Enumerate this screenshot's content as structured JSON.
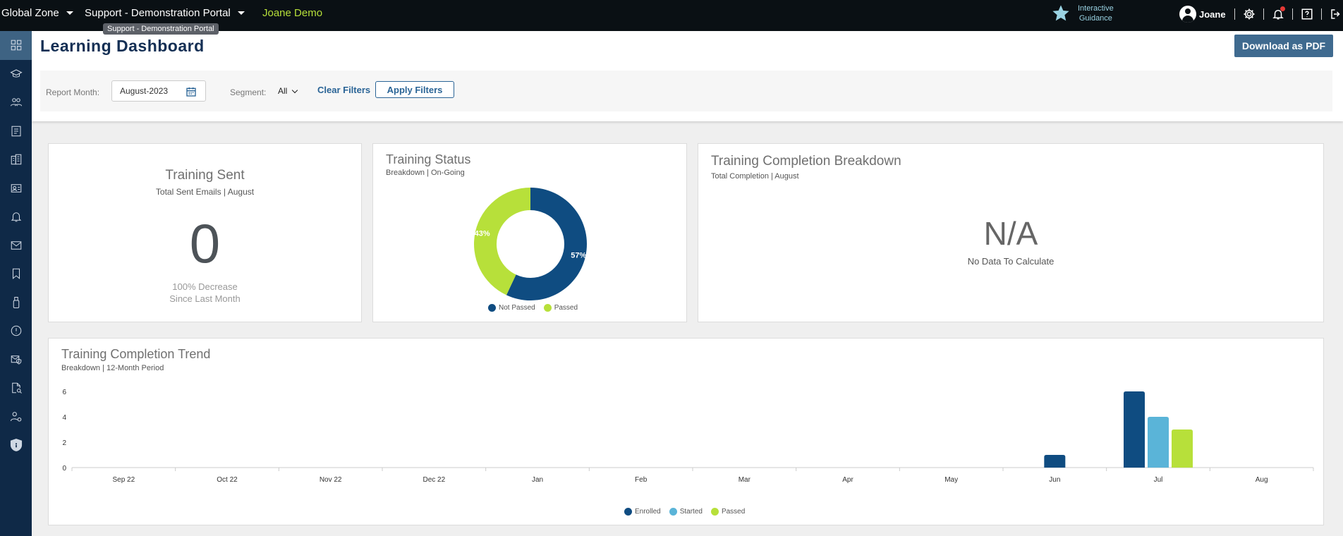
{
  "topbar": {
    "zone": "Global Zone",
    "portal": "Support - Demonstration Portal",
    "demo": "Joane Demo",
    "tooltip": "Support - Demonstration Portal",
    "guidance_line1": "Interactive",
    "guidance_line2": "Guidance",
    "user_name": "Joane",
    "icons": [
      "settings-icon",
      "bell-icon",
      "help-icon",
      "logout-icon"
    ]
  },
  "sidebar": {
    "items": [
      "dashboard-icon",
      "training-icon",
      "users-icon",
      "reports-icon",
      "company-icon",
      "profile-card-icon",
      "alert-bell-icon",
      "mail-icon",
      "bookmark-icon",
      "usb-icon",
      "warning-icon",
      "mail-shield-icon",
      "document-search-icon",
      "user-settings-icon",
      "shield-icon"
    ],
    "active_index": 0
  },
  "header": {
    "title": "Learning Dashboard",
    "pdf_button": "Download as PDF"
  },
  "filters": {
    "report_month_label": "Report Month:",
    "report_month_value": "August-2023",
    "segment_label": "Segment:",
    "segment_value": "All",
    "clear_label": "Clear Filters",
    "apply_label": "Apply Filters"
  },
  "training_sent": {
    "title": "Training Sent",
    "subtitle": "Total Sent Emails | August",
    "value": "0",
    "change_line1": "100% Decrease",
    "change_line2": "Since Last Month"
  },
  "training_status": {
    "title": "Training Status",
    "subtitle": "Breakdown | On-Going",
    "legend": [
      "Not Passed",
      "Passed"
    ]
  },
  "completion_breakdown": {
    "title": "Training Completion Breakdown",
    "subtitle": "Total Completion | August",
    "value": "N/A",
    "message": "No Data To Calculate"
  },
  "trend": {
    "title": "Training Completion Trend",
    "subtitle": "Breakdown | 12-Month Period",
    "legend": [
      "Enrolled",
      "Started",
      "Passed"
    ]
  },
  "colors": {
    "navy": "#0f4c81",
    "light_blue": "#5ab4d8",
    "lime": "#b7e03a"
  },
  "chart_data": [
    {
      "type": "pie",
      "title": "Training Status",
      "labels": [
        "Not Passed",
        "Passed"
      ],
      "values": [
        57,
        43
      ],
      "value_labels": [
        "57%",
        "43%"
      ],
      "colors": [
        "#0f4c81",
        "#b7e03a"
      ],
      "legend": "bottom"
    },
    {
      "type": "bar",
      "title": "Training Completion Trend",
      "categories": [
        "Sep 22",
        "Oct 22",
        "Nov 22",
        "Dec 22",
        "Jan",
        "Feb",
        "Mar",
        "Apr",
        "May",
        "Jun",
        "Jul",
        "Aug"
      ],
      "series": [
        {
          "name": "Enrolled",
          "color": "#0f4c81",
          "values": [
            0,
            0,
            0,
            0,
            0,
            0,
            0,
            0,
            0,
            1,
            6,
            0
          ]
        },
        {
          "name": "Started",
          "color": "#5ab4d8",
          "values": [
            0,
            0,
            0,
            0,
            0,
            0,
            0,
            0,
            0,
            0,
            4,
            0
          ]
        },
        {
          "name": "Passed",
          "color": "#b7e03a",
          "values": [
            0,
            0,
            0,
            0,
            0,
            0,
            0,
            0,
            0,
            0,
            3,
            0
          ]
        }
      ],
      "yticks": [
        0,
        2,
        4,
        6
      ],
      "ylim": [
        0,
        6
      ],
      "legend": "bottom"
    }
  ]
}
